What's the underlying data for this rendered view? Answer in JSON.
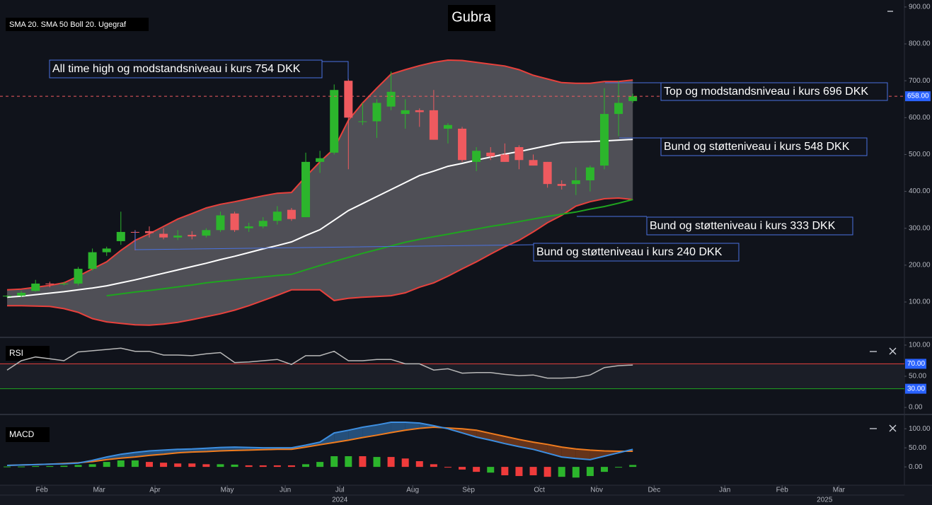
{
  "chart_data": [
    {
      "type": "candlestick",
      "title": "Gubra",
      "legend": "SMA 20. SMA 50 Boll 20. Ugegraf",
      "xlim": [
        -0.5,
        63.1
      ],
      "xticks": [
        {
          "value": 2.44,
          "label": "Feb"
        },
        {
          "value": 6.47,
          "label": "Mar"
        },
        {
          "value": 10.4,
          "label": "Apr"
        },
        {
          "value": 15.48,
          "label": "May"
        },
        {
          "value": 19.56,
          "label": "Jun"
        },
        {
          "value": 23.4,
          "label": "Jul"
        },
        {
          "value": 28.52,
          "label": "Aug"
        },
        {
          "value": 32.45,
          "label": "Sep"
        },
        {
          "value": 37.43,
          "label": "Oct"
        },
        {
          "value": 41.46,
          "label": "Nov"
        },
        {
          "value": 45.5,
          "label": "Dec"
        },
        {
          "value": 50.47,
          "label": "Jan"
        },
        {
          "value": 54.5,
          "label": "Feb"
        },
        {
          "value": 58.49,
          "label": "Mar"
        }
      ],
      "year_ticks": [
        {
          "value": 23.4,
          "label": "2024"
        },
        {
          "value": 57.49,
          "label": "2025"
        }
      ],
      "ylim": [
        6,
        919
      ],
      "yticks": [
        {
          "value": 900,
          "label": "900.00"
        },
        {
          "value": 800,
          "label": "800.00"
        },
        {
          "value": 700,
          "label": "700.00"
        },
        {
          "value": 600,
          "label": "600.00"
        },
        {
          "value": 500,
          "label": "500.00"
        },
        {
          "value": 400,
          "label": "400.00"
        },
        {
          "value": 300,
          "label": "300.00"
        },
        {
          "value": 200,
          "label": "200.00"
        },
        {
          "value": 100,
          "label": "100.00"
        }
      ],
      "open": [
        115,
        117,
        130,
        150,
        148,
        150,
        190,
        235,
        265,
        290,
        292,
        285,
        275,
        282,
        280,
        295,
        340,
        300,
        305,
        320,
        350,
        330,
        480,
        505,
        700,
        590,
        590,
        630,
        610,
        620,
        620,
        570,
        570,
        480,
        505,
        500,
        520,
        485,
        480,
        420,
        420,
        430,
        470,
        610,
        645
      ],
      "high": [
        118,
        130,
        160,
        155,
        155,
        195,
        245,
        250,
        345,
        295,
        305,
        300,
        295,
        292,
        300,
        345,
        345,
        315,
        330,
        360,
        355,
        505,
        510,
        690,
        705,
        640,
        650,
        725,
        650,
        625,
        675,
        585,
        575,
        520,
        520,
        530,
        525,
        500,
        480,
        430,
        465,
        470,
        680,
        700,
        665
      ],
      "low": [
        112,
        113,
        128,
        140,
        145,
        145,
        185,
        225,
        255,
        240,
        275,
        270,
        268,
        270,
        275,
        290,
        290,
        290,
        300,
        310,
        320,
        330,
        450,
        500,
        460,
        580,
        545,
        620,
        570,
        575,
        540,
        530,
        480,
        455,
        485,
        480,
        460,
        470,
        410,
        405,
        390,
        400,
        460,
        550,
        640
      ],
      "close": [
        117,
        125,
        150,
        148,
        150,
        190,
        235,
        245,
        290,
        288,
        287,
        275,
        280,
        278,
        295,
        335,
        295,
        305,
        320,
        345,
        325,
        480,
        490,
        675,
        600,
        590,
        640,
        670,
        620,
        615,
        540,
        580,
        485,
        510,
        495,
        480,
        485,
        470,
        420,
        415,
        430,
        465,
        610,
        640,
        658
      ],
      "up_color": "#2cb52c",
      "down_color": "#ef5a5f",
      "bollinger": {
        "color": "#e8413c",
        "fill": "#5b5b60",
        "upper": [
          133,
          135,
          140,
          145,
          152,
          170,
          190,
          209,
          240,
          267,
          285,
          305,
          325,
          340,
          355,
          365,
          372,
          380,
          388,
          395,
          397,
          440,
          480,
          516,
          593,
          640,
          680,
          718,
          730,
          741,
          750,
          756,
          755,
          750,
          745,
          740,
          730,
          715,
          705,
          695,
          693,
          693,
          698,
          698,
          702
        ],
        "lower": [
          90,
          90,
          89,
          88,
          82,
          72,
          55,
          46,
          42,
          38,
          37,
          40,
          45,
          52,
          60,
          68,
          78,
          90,
          104,
          118,
          133,
          133,
          133,
          104,
          110,
          113,
          115,
          117,
          125,
          140,
          152,
          170,
          190,
          209,
          230,
          250,
          267,
          290,
          315,
          335,
          360,
          372,
          380,
          382,
          378
        ]
      },
      "lines": [
        {
          "color": "#ffffff",
          "values": [
            113,
            116,
            120,
            124,
            128,
            133,
            138,
            144,
            152,
            160,
            169,
            178,
            187,
            196,
            205,
            215,
            224,
            234,
            244,
            253,
            263,
            280,
            296,
            322,
            348,
            367,
            386,
            405,
            424,
            443,
            455,
            468,
            476,
            485,
            493,
            501,
            508,
            516,
            524,
            532,
            534,
            535,
            537,
            539,
            541
          ]
        },
        {
          "color": "#1fa51f",
          "values": [
            null,
            null,
            null,
            null,
            null,
            null,
            null,
            117,
            122,
            127,
            131,
            136,
            141,
            146,
            152,
            156,
            160,
            164,
            168,
            172,
            175,
            187,
            199,
            210,
            221,
            232,
            242,
            252,
            262,
            270,
            277,
            284,
            291,
            298,
            305,
            311,
            318,
            325,
            332,
            338,
            344,
            352,
            359,
            368,
            378
          ]
        }
      ],
      "last_price": {
        "value": 658,
        "label": "658.00"
      },
      "annotations": [
        {
          "text": "All time high og modstandsniveau i kurs 754 DKK"
        },
        {
          "text": "Top og modstandsniveau i kurs 696 DKK"
        },
        {
          "text": "Bund og støtteniveau i kurs 548 DKK"
        },
        {
          "text": "Bund og støtteniveau i kurs 333 DKK"
        },
        {
          "text": "Bund og støtteniveau i kurs 240 DKK"
        }
      ]
    },
    {
      "type": "line",
      "title": "RSI",
      "ylim": [
        -9,
        109
      ],
      "yticks": [
        {
          "value": 100,
          "label": "100.00"
        },
        {
          "value": 50,
          "label": "50.00"
        },
        {
          "value": 0,
          "label": "0.00"
        }
      ],
      "levels": [
        {
          "value": 70,
          "label": "70.00",
          "color": "#e8413c"
        },
        {
          "value": 30,
          "label": "30.00",
          "color": "#1fa51f"
        }
      ],
      "color": "#b8b8b8",
      "values": [
        60,
        75,
        81,
        78,
        75,
        89,
        91,
        93,
        95,
        90,
        90,
        84,
        84,
        83,
        86,
        88,
        72,
        73,
        75,
        77,
        69,
        83,
        83,
        90,
        75,
        75,
        77,
        77,
        70,
        70,
        60,
        62,
        55,
        56,
        56,
        53,
        51,
        52,
        47,
        47,
        48,
        52,
        64,
        67,
        68
      ]
    },
    {
      "type": "macd",
      "title": "MACD",
      "ylim": [
        -48,
        130
      ],
      "yticks": [
        {
          "value": 100,
          "label": "100.00"
        },
        {
          "value": 50,
          "label": "50.00"
        },
        {
          "value": 0,
          "label": "0.00"
        }
      ],
      "macd": {
        "color": "#3d8ee0",
        "values": [
          4,
          5,
          6,
          7,
          8,
          10,
          17,
          26,
          33,
          38,
          42,
          44,
          46,
          47,
          49,
          51,
          52,
          51,
          50,
          50,
          50,
          57,
          65,
          89,
          96,
          104,
          110,
          117,
          117,
          115,
          108,
          100,
          89,
          78,
          70,
          61,
          53,
          46,
          36,
          26,
          22,
          19,
          28,
          37,
          46
        ]
      },
      "signal": {
        "color": "#f07c1e",
        "values": [
          4,
          5,
          6,
          7,
          9,
          11,
          14,
          19,
          23,
          26,
          30,
          33,
          37,
          39,
          40,
          42,
          43,
          44,
          45,
          46,
          46,
          52,
          58,
          64,
          70,
          77,
          83,
          90,
          96,
          101,
          104,
          102,
          100,
          96,
          88,
          80,
          72,
          65,
          59,
          52,
          47,
          44,
          42,
          41,
          41
        ]
      },
      "above_fill": "#2a5f92",
      "below_fill": "#7a3d1c",
      "histogram": {
        "values": [
          1,
          1,
          2,
          2,
          3,
          5,
          7,
          13,
          17,
          17,
          13,
          11,
          9,
          9,
          7,
          7,
          6,
          4,
          4,
          4,
          4,
          7,
          13,
          28,
          28,
          28,
          26,
          26,
          22,
          15,
          7,
          0,
          -7,
          -13,
          -15,
          -22,
          -24,
          -22,
          -26,
          -26,
          -28,
          -24,
          -13,
          0,
          5
        ],
        "colors": [
          "#2cb52c",
          "#2cb52c",
          "#2cb52c",
          "#2cb52c",
          "#2cb52c",
          "#2cb52c",
          "#2cb52c",
          "#2cb52c",
          "#2cb52c",
          "#2cb52c",
          "#ef3b3b",
          "#ef3b3b",
          "#ef3b3b",
          "#ef3b3b",
          "#ef3b3b",
          "#2cb52c",
          "#2cb52c",
          "#ef3b3b",
          "#ef3b3b",
          "#ef3b3b",
          "#ef3b3b",
          "#2cb52c",
          "#2cb52c",
          "#2cb52c",
          "#2cb52c",
          "#ef3b3b",
          "#2cb52c",
          "#ef3b3b",
          "#ef3b3b",
          "#ef3b3b",
          "#ef3b3b",
          "#ef3b3b",
          "#ef3b3b",
          "#ef3b3b",
          "#2cb52c",
          "#ef3b3b",
          "#ef3b3b",
          "#ef3b3b",
          "#ef3b3b",
          "#2cb52c",
          "#2cb52c",
          "#2cb52c",
          "#2cb52c",
          "#2cb52c",
          "#2cb52c"
        ]
      }
    }
  ]
}
